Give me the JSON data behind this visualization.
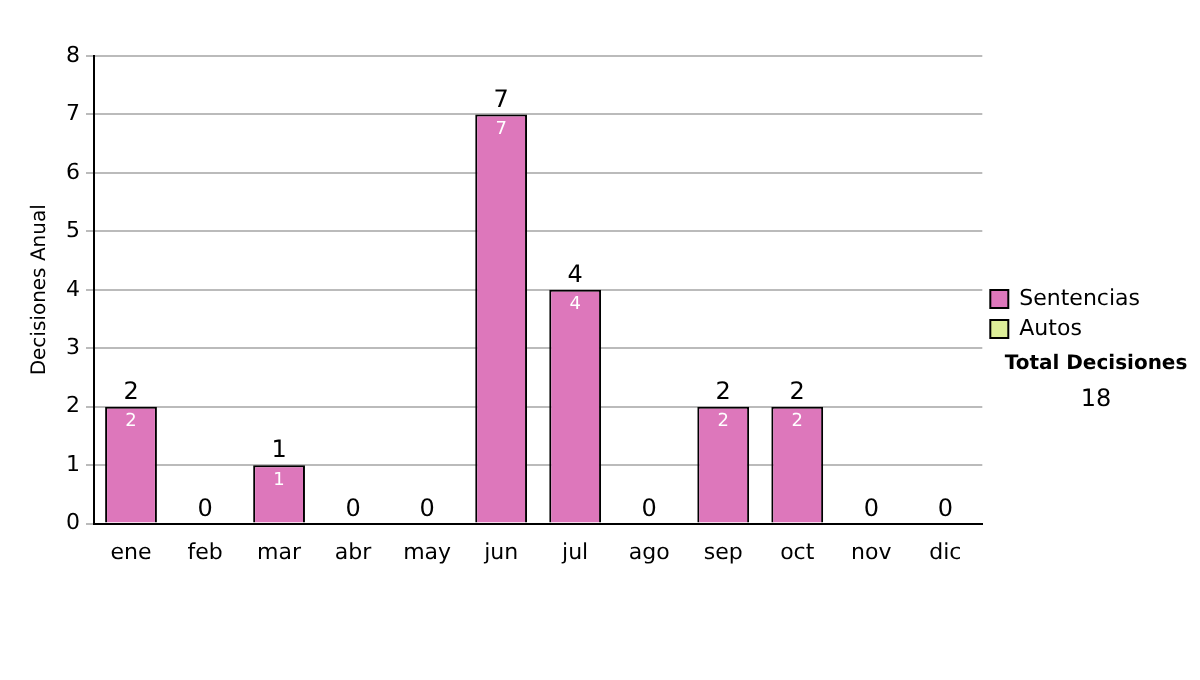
{
  "chart_data": {
    "type": "bar",
    "stacked": true,
    "ylabel": "Decisiones Anual",
    "categories": [
      "ene",
      "feb",
      "mar",
      "abr",
      "may",
      "jun",
      "jul",
      "ago",
      "sep",
      "oct",
      "nov",
      "dic"
    ],
    "series": [
      {
        "name": "Sentencias",
        "color": "#dd77bb",
        "values": [
          2,
          0,
          1,
          0,
          0,
          7,
          4,
          0,
          2,
          2,
          0,
          0
        ],
        "value_labels": [
          "2",
          null,
          "1",
          null,
          null,
          "7",
          "4",
          null,
          "2",
          "2",
          null,
          null
        ]
      },
      {
        "name": "Autos",
        "color": "#ddee99",
        "values": [
          0,
          0,
          0,
          0,
          0,
          0,
          0,
          0,
          0,
          0,
          0,
          0
        ]
      }
    ],
    "totals": [
      "2",
      "0",
      "1",
      "0",
      "0",
      "7",
      "4",
      "0",
      "2",
      "2",
      "0",
      "0"
    ],
    "ylim": [
      0,
      8
    ],
    "yticks": [
      0,
      1,
      2,
      3,
      4,
      5,
      6,
      7,
      8
    ],
    "grid": "y",
    "legend": "right",
    "annotations": [
      "Total Decisiones",
      "18"
    ]
  }
}
